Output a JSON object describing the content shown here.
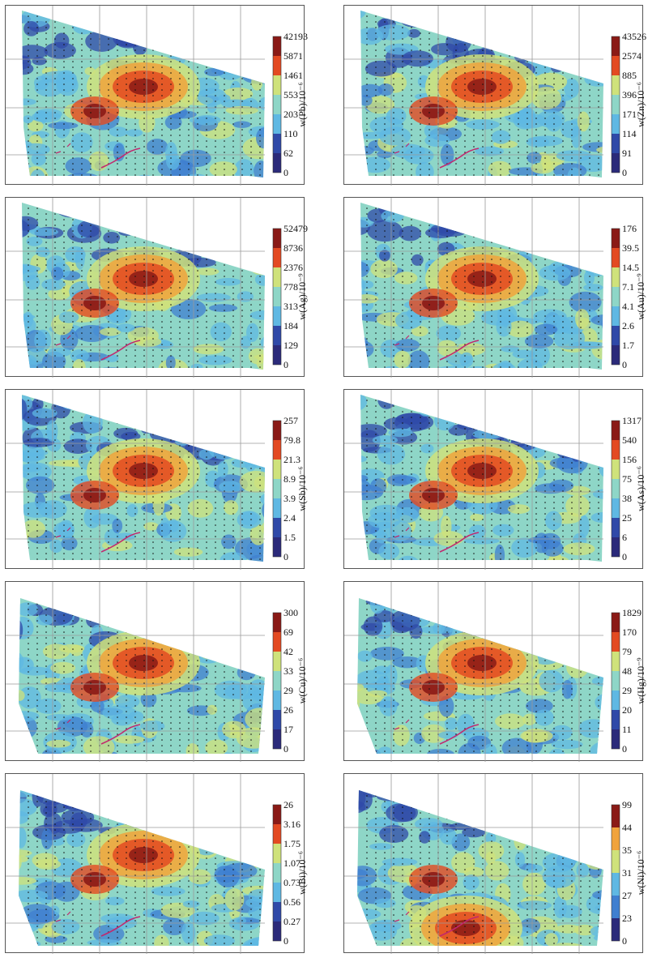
{
  "colors": {
    "scale": [
      "#2b2a7a",
      "#2f49a8",
      "#3f7fd0",
      "#5fb8e3",
      "#8ed6c7",
      "#cfe27b",
      "#f0a33c",
      "#e34a22",
      "#8a1a16"
    ],
    "frame": "#555555",
    "grid": "#9a9a9a",
    "outcrop": "#c2286e"
  },
  "chart_data": [
    {
      "type": "heatmap",
      "element": "Pb",
      "title": "w(Pb)/10⁻⁶",
      "ticks": [
        "42193",
        "5871",
        "1461",
        "553",
        "203",
        "110",
        "62",
        "0"
      ]
    },
    {
      "type": "heatmap",
      "element": "Zn",
      "title": "w(Zn)/10⁻⁶",
      "ticks": [
        "43526",
        "2574",
        "885",
        "396",
        "171",
        "114",
        "91",
        "0"
      ]
    },
    {
      "type": "heatmap",
      "element": "Ag",
      "title": "w(Ag)/10⁻⁹",
      "ticks": [
        "52479",
        "8736",
        "2376",
        "778",
        "313",
        "184",
        "129",
        "0"
      ]
    },
    {
      "type": "heatmap",
      "element": "Au",
      "title": "w(Au)/10⁻⁹",
      "ticks": [
        "176",
        "39.5",
        "14.5",
        "7.1",
        "4.1",
        "2.6",
        "1.7",
        "0"
      ]
    },
    {
      "type": "heatmap",
      "element": "Sb",
      "title": "w(Sb)/10⁻⁶",
      "ticks": [
        "257",
        "79.8",
        "21.3",
        "8.9",
        "3.9",
        "2.4",
        "1.5",
        "0"
      ]
    },
    {
      "type": "heatmap",
      "element": "As",
      "title": "w(As)/10⁻⁶",
      "ticks": [
        "1317",
        "540",
        "156",
        "75",
        "38",
        "25",
        "6",
        "0"
      ]
    },
    {
      "type": "heatmap",
      "element": "Cu",
      "title": "w(Cu)/10⁻⁶",
      "ticks": [
        "300",
        "69",
        "42",
        "33",
        "29",
        "26",
        "17",
        "0"
      ]
    },
    {
      "type": "heatmap",
      "element": "Hg",
      "title": "w(Hg)/10⁻⁹",
      "ticks": [
        "1829",
        "170",
        "79",
        "48",
        "29",
        "20",
        "11",
        "0"
      ]
    },
    {
      "type": "heatmap",
      "element": "Bi",
      "title": "w(Bi)/10⁻⁶",
      "ticks": [
        "26",
        "3.16",
        "1.75",
        "1.07",
        "0.73",
        "0.56",
        "0.27",
        "0"
      ]
    },
    {
      "type": "heatmap",
      "element": "Ni",
      "title": "w(Ni)/10⁻⁶",
      "ticks": [
        "99",
        "44",
        "35",
        "31",
        "27",
        "23",
        "0"
      ]
    }
  ]
}
